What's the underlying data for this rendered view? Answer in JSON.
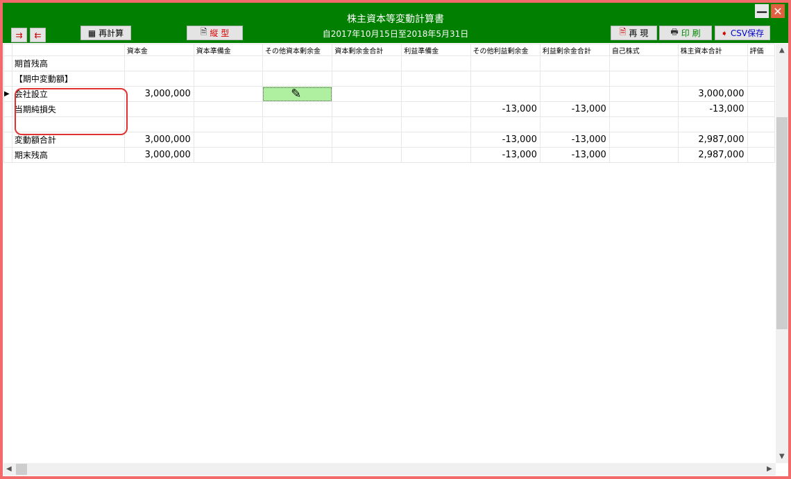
{
  "window": {
    "title": "株主資本等変動計算書",
    "period": "自2017年10月15日至2018年5月31日"
  },
  "toolbar": {
    "recalc": "再計算",
    "vertical": "縦 型",
    "reproduce": "再 現",
    "print": "印 刷",
    "csv": "CSV保存"
  },
  "columns": [
    "資本金",
    "資本準備金",
    "その他資本剰余金",
    "資本剰余金合計",
    "利益準備金",
    "その他利益剰余金",
    "利益剰余金合計",
    "自己株式",
    "株主資本合計",
    "評価"
  ],
  "rows": [
    {
      "label": "期首残高",
      "values": [
        "",
        "",
        "",
        "",
        "",
        "",
        "",
        "",
        ""
      ]
    },
    {
      "label": "【期中変動額】",
      "values": [
        "",
        "",
        "",
        "",
        "",
        "",
        "",
        "",
        ""
      ]
    },
    {
      "label": "会社設立",
      "values": [
        "3,000,000",
        "",
        "",
        "",
        "",
        "",
        "",
        "",
        "3,000,000"
      ]
    },
    {
      "label": "当期純損失",
      "values": [
        "",
        "",
        "",
        "",
        "",
        "-13,000",
        "-13,000",
        "",
        "-13,000"
      ]
    },
    {
      "label": "",
      "values": [
        "",
        "",
        "",
        "",
        "",
        "",
        "",
        "",
        ""
      ]
    },
    {
      "label": "変動額合計",
      "values": [
        "3,000,000",
        "",
        "",
        "",
        "",
        "-13,000",
        "-13,000",
        "",
        "2,987,000"
      ]
    },
    {
      "label": "期末残高",
      "values": [
        "3,000,000",
        "",
        "",
        "",
        "",
        "-13,000",
        "-13,000",
        "",
        "2,987,000"
      ]
    }
  ],
  "colors": {
    "header": "#007f00",
    "selected": "#aef0a0",
    "frame": "#f26a6a",
    "annotation": "#e03030"
  }
}
